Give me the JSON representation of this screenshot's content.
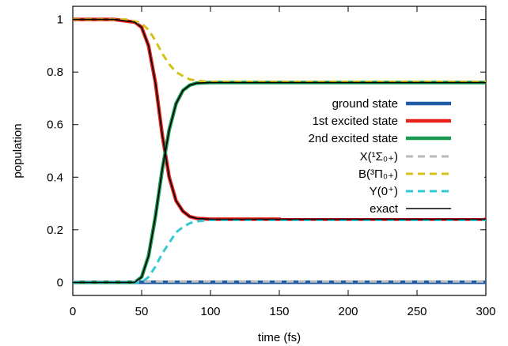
{
  "chart_data": {
    "type": "line",
    "xlabel": "time (fs)",
    "ylabel": "population",
    "xlim": [
      0,
      300
    ],
    "ylim": [
      -0.05,
      1.05
    ],
    "x_ticks": [
      0,
      50,
      100,
      150,
      200,
      250,
      300
    ],
    "y_ticks": [
      0,
      0.2,
      0.4,
      0.6,
      0.8,
      1
    ],
    "x_tick_labels": [
      "0",
      "50",
      "100",
      "150",
      "200",
      "250",
      "300"
    ],
    "y_tick_labels": [
      "0",
      "0.2",
      "0.4",
      "0.6",
      "0.8",
      "1"
    ],
    "legend_position": "right",
    "grid": false,
    "series": [
      {
        "name": "ground state",
        "color": "#1f5aa6",
        "style": "solid",
        "x": [
          0,
          50,
          100,
          150,
          200,
          250,
          300
        ],
        "y": [
          0.0,
          0.0,
          0.0,
          0.0,
          0.0,
          0.0,
          0.0
        ]
      },
      {
        "name": "1st excited state",
        "color": "#e8211b",
        "style": "solid",
        "x": [
          0,
          30,
          45,
          50,
          55,
          60,
          65,
          70,
          75,
          80,
          85,
          90,
          100,
          150,
          200,
          250,
          300
        ],
        "y": [
          1.0,
          1.0,
          0.99,
          0.97,
          0.9,
          0.76,
          0.56,
          0.4,
          0.31,
          0.27,
          0.25,
          0.243,
          0.24,
          0.24,
          0.24,
          0.24,
          0.24
        ]
      },
      {
        "name": "2nd excited state",
        "color": "#1a9a50",
        "style": "solid",
        "x": [
          0,
          45,
          50,
          55,
          60,
          65,
          70,
          75,
          80,
          85,
          90,
          100,
          150,
          200,
          250,
          300
        ],
        "y": [
          0.0,
          0.0,
          0.02,
          0.1,
          0.25,
          0.43,
          0.58,
          0.68,
          0.73,
          0.75,
          0.758,
          0.76,
          0.76,
          0.76,
          0.76,
          0.76
        ]
      },
      {
        "name": "X(¹Σ₀₊)",
        "color": "#b9b9b9",
        "style": "dashed",
        "x": [
          0,
          50,
          100,
          150,
          200,
          250,
          300
        ],
        "y": [
          0.003,
          0.003,
          0.003,
          0.003,
          0.003,
          0.003,
          0.003
        ]
      },
      {
        "name": "B(³Π₀₊)",
        "color": "#d4c21a",
        "style": "dashed",
        "x": [
          0,
          40,
          50,
          55,
          60,
          65,
          70,
          75,
          80,
          85,
          90,
          100,
          150,
          200,
          250,
          300
        ],
        "y": [
          1.0,
          1.0,
          0.985,
          0.96,
          0.92,
          0.87,
          0.83,
          0.8,
          0.785,
          0.772,
          0.767,
          0.763,
          0.763,
          0.763,
          0.763,
          0.763
        ]
      },
      {
        "name": "Y(0⁺)",
        "color": "#33c9d4",
        "style": "dashed",
        "x": [
          0,
          50,
          55,
          60,
          65,
          70,
          75,
          80,
          85,
          90,
          100,
          150,
          200,
          250,
          300
        ],
        "y": [
          0.0,
          0.0,
          0.02,
          0.06,
          0.11,
          0.15,
          0.19,
          0.21,
          0.225,
          0.232,
          0.237,
          0.237,
          0.237,
          0.237,
          0.237
        ]
      },
      {
        "name": "exact",
        "color": "#000000",
        "style": "solid",
        "x": [
          0,
          45,
          50,
          55,
          60,
          65,
          70,
          75,
          80,
          85,
          90,
          100,
          150,
          200,
          250,
          300
        ],
        "y": [
          0.0,
          0.0,
          0.02,
          0.1,
          0.25,
          0.43,
          0.58,
          0.68,
          0.73,
          0.75,
          0.758,
          0.76,
          0.76,
          0.76,
          0.76,
          0.76
        ]
      },
      {
        "name": "exact",
        "color": "#000000",
        "style": "solid",
        "x": [
          0,
          30,
          45,
          50,
          55,
          60,
          65,
          70,
          75,
          80,
          85,
          90,
          100,
          150,
          200,
          250,
          300
        ],
        "y": [
          1.0,
          1.0,
          0.99,
          0.97,
          0.9,
          0.76,
          0.56,
          0.4,
          0.31,
          0.27,
          0.25,
          0.243,
          0.24,
          0.24,
          0.24,
          0.24,
          0.24
        ]
      }
    ]
  }
}
